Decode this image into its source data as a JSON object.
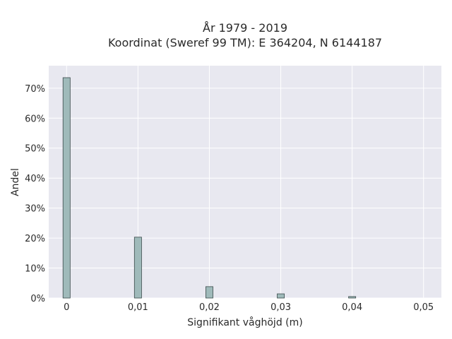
{
  "chart_data": {
    "type": "bar",
    "title_lines": [
      "År 1979 - 2019",
      "Koordinat (Sweref 99 TM): E 364204, N 6144187"
    ],
    "xlabel": "Signifikant våghöjd (m)",
    "ylabel": "Andel",
    "x_ticks": [
      0,
      0.01,
      0.02,
      0.03,
      0.04,
      0.05
    ],
    "x_tick_labels": [
      "0",
      "0,01",
      "0,02",
      "0,03",
      "0,04",
      "0,05"
    ],
    "y_ticks": [
      0,
      10,
      20,
      30,
      40,
      50,
      60,
      70
    ],
    "y_tick_labels": [
      "0%",
      "10%",
      "20%",
      "30%",
      "40%",
      "50%",
      "60%",
      "70%"
    ],
    "xlim": [
      -0.0025,
      0.0525
    ],
    "ylim": [
      0,
      77.5
    ],
    "bin_width": 0.001,
    "x": [
      0,
      0.01,
      0.02,
      0.03,
      0.04
    ],
    "values": [
      73.5,
      20.3,
      3.8,
      1.4,
      0.5
    ],
    "grid": true,
    "colors": {
      "plot_bg": "#e8e8f0",
      "grid": "#ffffff",
      "bar_fill": "#9fbaba",
      "bar_edge": "#3a4a4a"
    }
  }
}
